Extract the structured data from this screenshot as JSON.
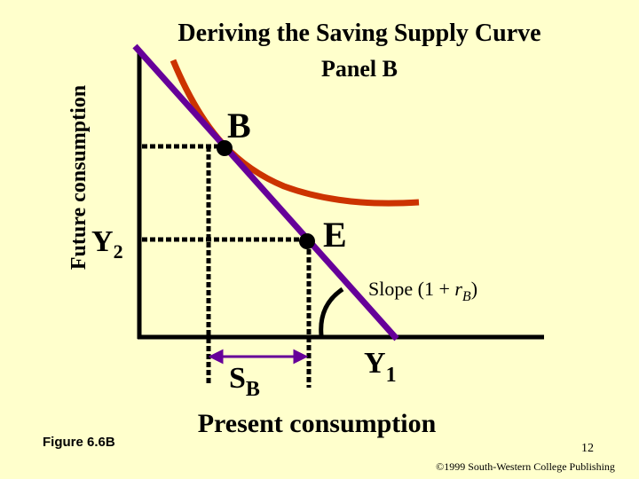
{
  "title": "Deriving the Saving Supply Curve",
  "subtitle": "Panel B",
  "y_axis_label": "Future consumption",
  "x_axis_label": "Present consumption",
  "points": {
    "b": "B",
    "e": "E"
  },
  "y2_label": {
    "main": "Y",
    "subscript": "2"
  },
  "y1_label": {
    "main": "Y",
    "subscript": "1"
  },
  "sb_label": {
    "main": "S",
    "subscript": "B"
  },
  "slope_label": {
    "prefix": "Slope (1 + ",
    "variable": "r",
    "subscript": "B",
    "suffix": ")"
  },
  "figure": "Figure 6.6B",
  "page_number": "12",
  "copyright": "©1999 South-Western College Publishing"
}
